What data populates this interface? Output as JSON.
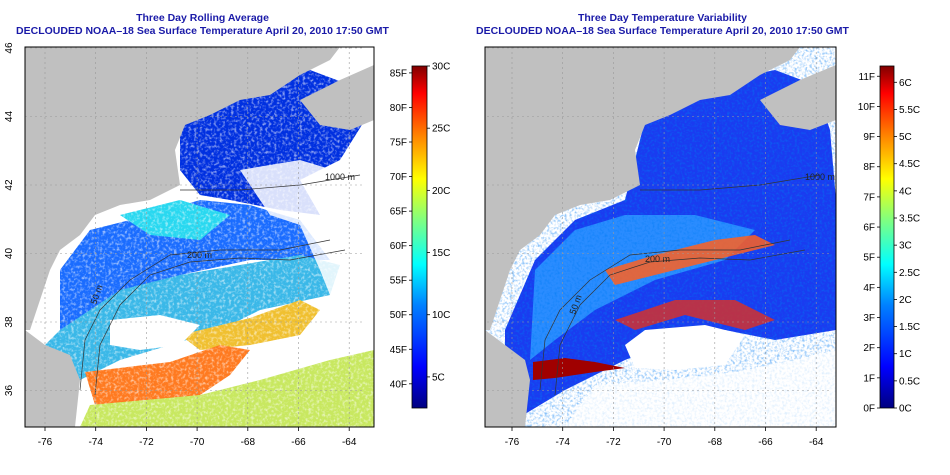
{
  "left": {
    "title": "Three Day Rolling Average",
    "subtitle": "DECLOUDED NOAA–18 Sea Surface Temperature April 20, 2010 17:50 GMT",
    "colorbar": {
      "f_ticks": [
        "85F",
        "80F",
        "75F",
        "70F",
        "65F",
        "60F",
        "55F",
        "50F",
        "45F",
        "40F"
      ],
      "c_ticks": [
        "30C",
        "25C",
        "20C",
        "15C",
        "10C",
        "5C"
      ],
      "f_values": [
        85,
        80,
        75,
        70,
        65,
        60,
        55,
        50,
        45,
        40
      ],
      "c_values": [
        30,
        25,
        20,
        15,
        10,
        5
      ],
      "range_c": [
        2.5,
        30
      ]
    }
  },
  "right": {
    "title": "Three Day Temperature Variability",
    "subtitle": "DECLOUDED NOAA–18 Sea Surface Temperature April 20, 2010 17:50 GMT",
    "colorbar": {
      "f_ticks": [
        "11F",
        "10F",
        "9F",
        "8F",
        "7F",
        "6F",
        "5F",
        "4F",
        "3F",
        "2F",
        "1F",
        "0F"
      ],
      "c_ticks": [
        "6C",
        "5.5C",
        "5C",
        "4.5C",
        "4C",
        "3.5C",
        "3C",
        "2.5C",
        "2C",
        "1.5C",
        "1C",
        "0.5C",
        "0C"
      ],
      "f_values": [
        11,
        10,
        9,
        8,
        7,
        6,
        5,
        4,
        3,
        2,
        1,
        0
      ],
      "c_values": [
        6,
        5.5,
        5,
        4.5,
        4,
        3.5,
        3,
        2.5,
        2,
        1.5,
        1,
        0.5,
        0
      ],
      "range_c": [
        0,
        6.3
      ]
    }
  },
  "map": {
    "lon_ticks": [
      "-76",
      "-74",
      "-72",
      "-70",
      "-68",
      "-66",
      "-64"
    ],
    "lat_ticks": [
      "46",
      "44",
      "42",
      "40",
      "38",
      "36"
    ],
    "contour_labels": [
      "200 m",
      "50 m",
      "1000 m"
    ],
    "land_color": "#c0c0c0",
    "ocean_no_data_color": "#ffffff",
    "grid": true
  },
  "colors": {
    "title": "#1a1aa8",
    "colormap": [
      "#000080",
      "#0000ff",
      "#0080ff",
      "#00ffff",
      "#80ff80",
      "#ffff00",
      "#ff8000",
      "#ff0000",
      "#800000"
    ]
  }
}
